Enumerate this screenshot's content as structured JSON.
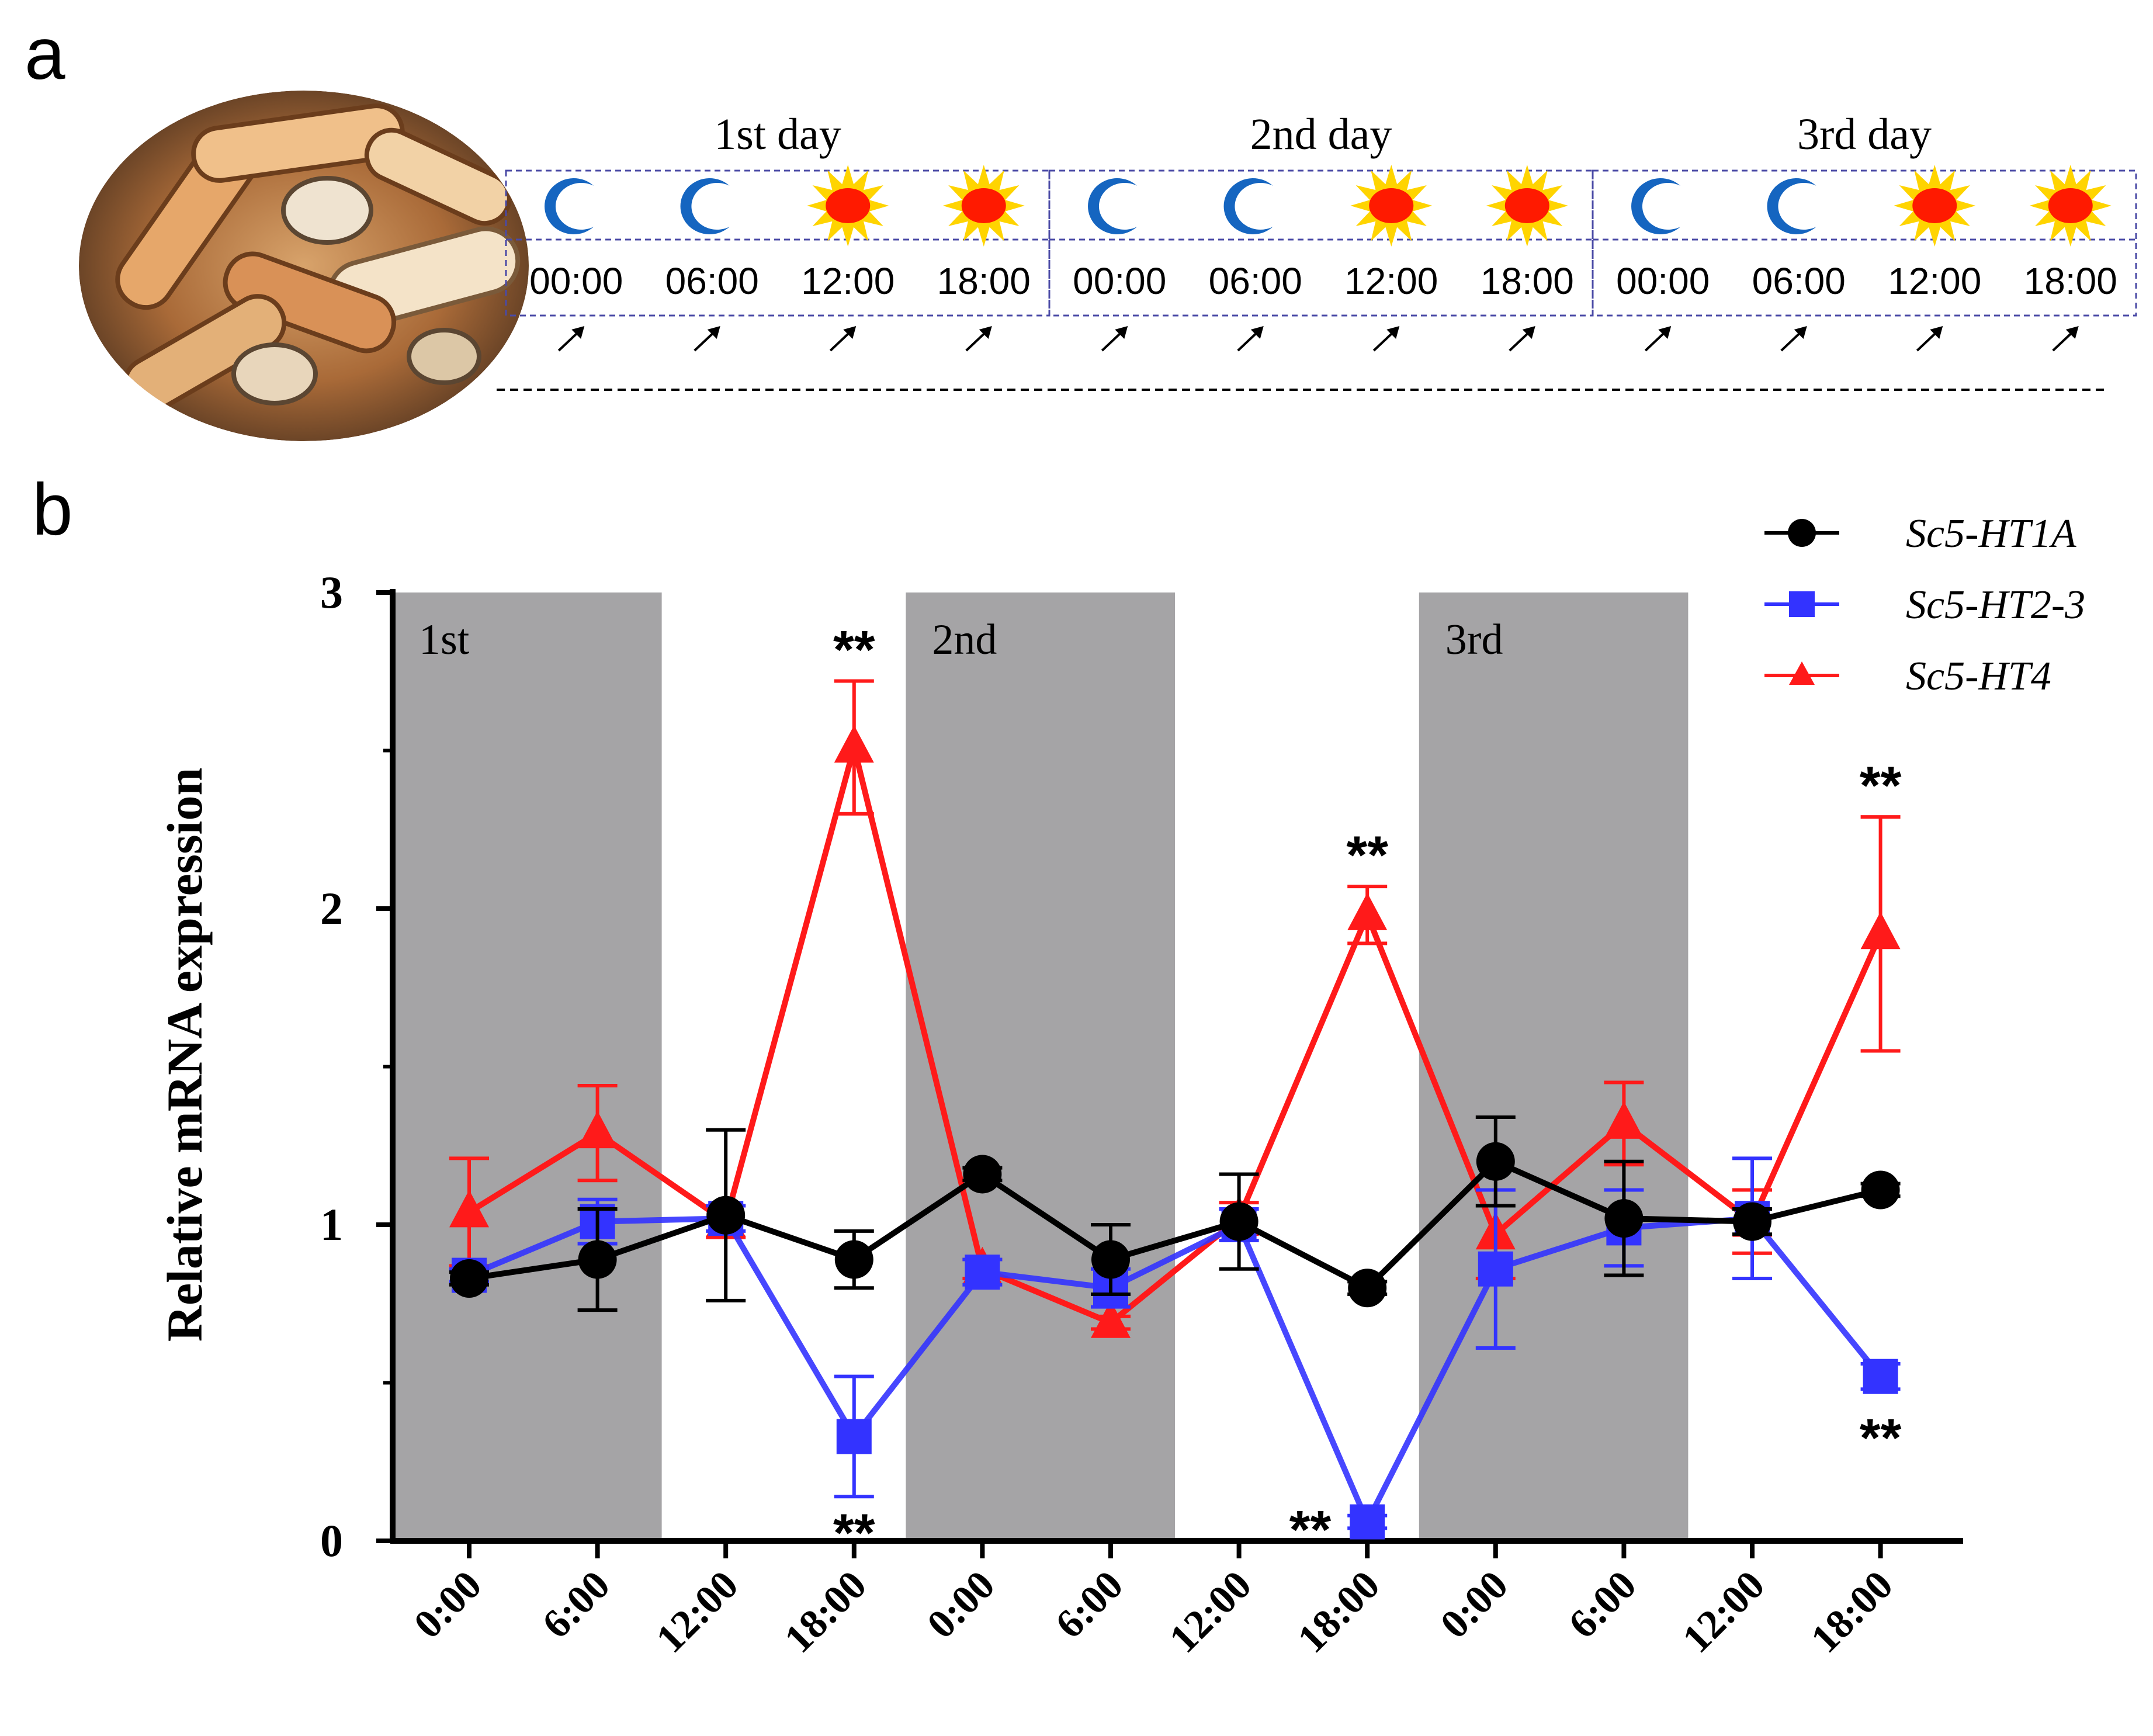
{
  "panel_a": {
    "letter": "a",
    "days": [
      "1st day",
      "2nd day",
      "3rd day"
    ],
    "times": [
      "00:00",
      "06:00",
      "12:00",
      "18:00"
    ],
    "slot_icons": [
      "moon-icon",
      "moon-icon",
      "sun-icon",
      "sun-icon"
    ],
    "photo_icon": "razor-clam-photo",
    "colors": {
      "moon": "#1565c0",
      "sun_core": "#ff1a00",
      "sun_rays": "#ffd400",
      "box_border": "#4a4aa6"
    }
  },
  "panel_b": {
    "letter": "b"
  },
  "chart_data": {
    "type": "line",
    "title": "",
    "xlabel": "",
    "ylabel": "Relative mRNA expression",
    "ylim": [
      0,
      3
    ],
    "yticks": [
      "0",
      "1",
      "2",
      "3"
    ],
    "categories": [
      "0:00",
      "6:00",
      "12:00",
      "18:00",
      "0:00",
      "6:00",
      "12:00",
      "18:00",
      "0:00",
      "6:00",
      "12:00",
      "18:00"
    ],
    "dark_bands": [
      {
        "label": "1st",
        "from_index": 0,
        "to_index": 1
      },
      {
        "label": "2nd",
        "from_index": 4,
        "to_index": 5
      },
      {
        "label": "3rd",
        "from_index": 8,
        "to_index": 9
      }
    ],
    "series": [
      {
        "name": "Sc5-HT1A",
        "color": "#000000",
        "marker": "circle",
        "values": [
          0.83,
          0.89,
          1.03,
          0.89,
          1.16,
          0.89,
          1.01,
          0.8,
          1.2,
          1.02,
          1.01,
          1.11
        ],
        "errors": [
          0.02,
          0.16,
          0.27,
          0.09,
          0.02,
          0.11,
          0.15,
          0.02,
          0.14,
          0.18,
          0.04,
          0.02
        ]
      },
      {
        "name": "Sc5-HT2-3",
        "color": "#3333ff",
        "marker": "square",
        "values": [
          0.84,
          1.01,
          1.02,
          0.33,
          0.85,
          0.8,
          1.0,
          0.06,
          0.86,
          0.99,
          1.02,
          0.52
        ],
        "errors": [
          0.02,
          0.07,
          0.04,
          0.19,
          0.04,
          0.06,
          0.05,
          0.02,
          0.25,
          0.12,
          0.19,
          0.04
        ]
      },
      {
        "name": "Sc5-HT4",
        "color": "#ff1a1a",
        "marker": "triangle",
        "values": [
          1.04,
          1.29,
          1.01,
          2.51,
          0.86,
          0.69,
          1.02,
          1.98,
          0.97,
          1.32,
          1.01,
          1.92
        ],
        "errors": [
          0.17,
          0.15,
          0.05,
          0.21,
          0.03,
          0.02,
          0.05,
          0.09,
          0.14,
          0.13,
          0.1,
          0.37
        ]
      }
    ],
    "annotations": [
      {
        "text": "**",
        "series": "Sc5-HT4",
        "index": 3,
        "position": "above"
      },
      {
        "text": "**",
        "series": "Sc5-HT2-3",
        "index": 3,
        "position": "below"
      },
      {
        "text": "**",
        "series": "Sc5-HT4",
        "index": 7,
        "position": "above"
      },
      {
        "text": "**",
        "series": "Sc5-HT2-3",
        "index": 7,
        "position": "left"
      },
      {
        "text": "**",
        "series": "Sc5-HT4",
        "index": 11,
        "position": "above"
      },
      {
        "text": "**",
        "series": "Sc5-HT2-3",
        "index": 11,
        "position": "below"
      }
    ],
    "legend_position": "top-right"
  }
}
